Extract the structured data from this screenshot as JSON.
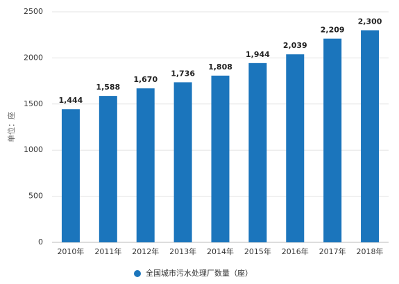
{
  "chart_data": {
    "type": "bar",
    "y_label": "单位：座",
    "categories": [
      "2010年",
      "2011年",
      "2012年",
      "2013年",
      "2014年",
      "2015年",
      "2016年",
      "2017年",
      "2018年"
    ],
    "series": [
      {
        "name": "全国城市污水处理厂数量（座）",
        "color": "#1b75bc",
        "values": [
          1444,
          1588,
          1670,
          1736,
          1808,
          1944,
          2039,
          2209,
          2300
        ],
        "value_labels": [
          "1,444",
          "1,588",
          "1,670",
          "1,736",
          "1,808",
          "1,944",
          "2,039",
          "2,209",
          "2,300"
        ]
      }
    ],
    "ylim": [
      0,
      2500
    ],
    "yticks": [
      0,
      500,
      1000,
      1500,
      2000,
      2500
    ],
    "grid": true
  }
}
